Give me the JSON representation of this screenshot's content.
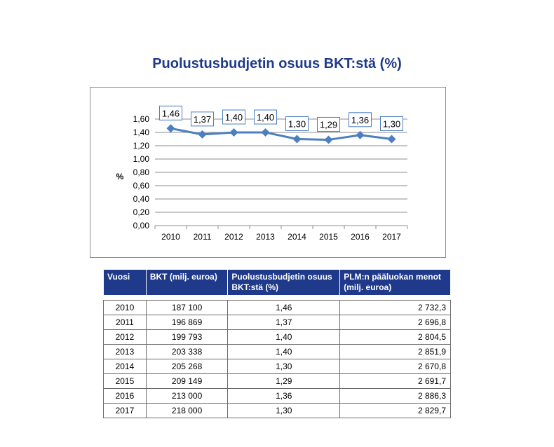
{
  "chart_data": {
    "type": "line",
    "title": "Puolustusbudjetin osuus BKT:stä (%)",
    "ylabel": "%",
    "xlabel": "",
    "categories": [
      "2010",
      "2011",
      "2012",
      "2013",
      "2014",
      "2015",
      "2016",
      "2017"
    ],
    "series": [
      {
        "values": [
          1.46,
          1.37,
          1.4,
          1.4,
          1.3,
          1.29,
          1.36,
          1.3
        ],
        "labels": [
          "1,46",
          "1,37",
          "1,40",
          "1,40",
          "1,30",
          "1,29",
          "1,36",
          "1,30"
        ],
        "color": "#4a7fc1"
      }
    ],
    "ylim": [
      0,
      1.6
    ],
    "yticks": [
      0,
      0.2,
      0.4,
      0.6,
      0.8,
      1.0,
      1.2,
      1.4,
      1.6
    ],
    "ytick_labels": [
      "0,00",
      "0,20",
      "0,40",
      "0,60",
      "0,80",
      "1,00",
      "1,20",
      "1,40",
      "1,60"
    ],
    "grid": true,
    "legend": "none"
  },
  "table": {
    "headers": [
      [
        "Vuosi"
      ],
      [
        "BKT (milj. euroa)"
      ],
      [
        "Puolustusbudjetin osuus",
        "BKT:stä (%)"
      ],
      [
        "PLM:n pääluokan menot",
        "(milj. euroa)"
      ]
    ],
    "rows": [
      [
        "2010",
        "187 100",
        "1,46",
        "2 732,3"
      ],
      [
        "2011",
        "196 869",
        "1,37",
        "2 696,8"
      ],
      [
        "2012",
        "199 793",
        "1,40",
        "2 804,5"
      ],
      [
        "2013",
        "203 338",
        "1,40",
        "2 851,9"
      ],
      [
        "2014",
        "205 268",
        "1,30",
        "2 670,8"
      ],
      [
        "2015",
        "209 149",
        "1,29",
        "2 691,7"
      ],
      [
        "2016",
        "213 000",
        "1,36",
        "2 886,3"
      ],
      [
        "2017",
        "218 000",
        "1,30",
        "2 829,7"
      ]
    ]
  }
}
